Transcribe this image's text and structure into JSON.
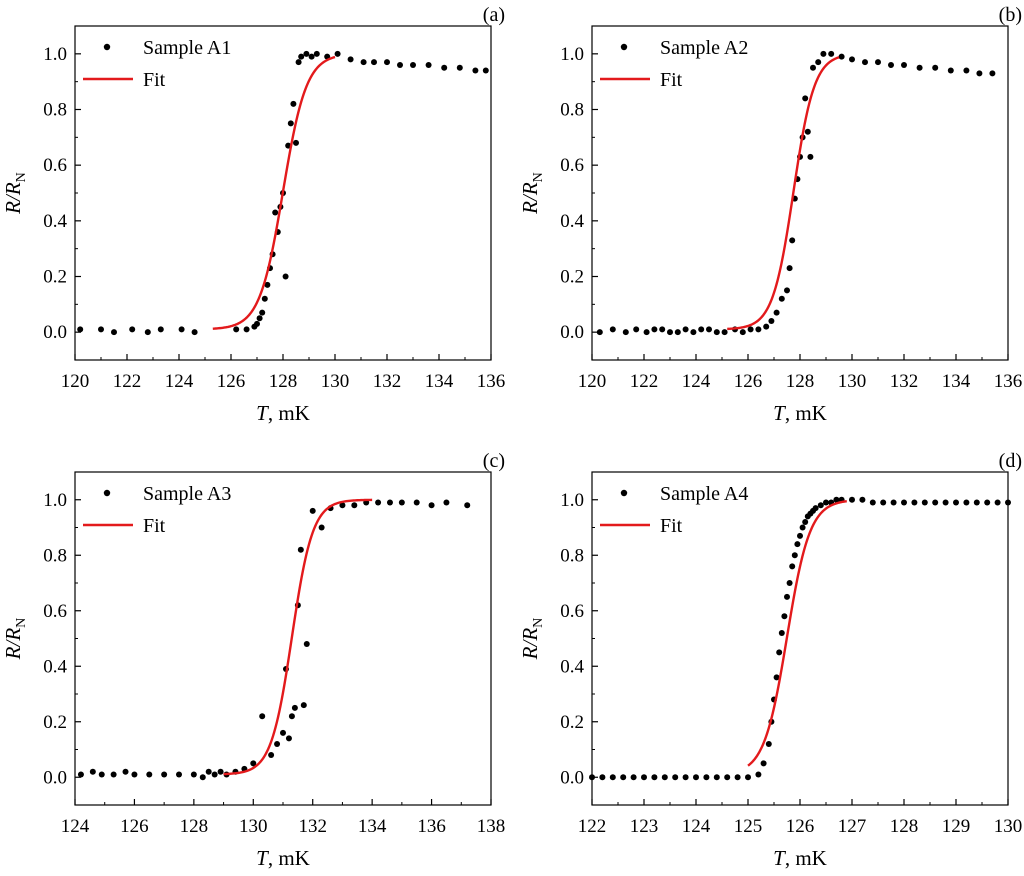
{
  "figure": {
    "style": {
      "fit_color": "#e31a1c",
      "point_color": "#000000"
    }
  },
  "chart_data": [
    {
      "type": "scatter",
      "panel_label": "(a)",
      "xlabel_italic": "T",
      "xlabel_rest": ", mK",
      "ylabel_main": "R/R",
      "ylabel_sub": "N",
      "xlim": [
        120,
        136
      ],
      "ylim": [
        -0.1,
        1.1
      ],
      "xticks": [
        120,
        122,
        124,
        126,
        128,
        130,
        132,
        134,
        136
      ],
      "yticks": [
        "0.0",
        "0.2",
        "0.4",
        "0.6",
        "0.8",
        "1.0"
      ],
      "legend": {
        "position": "top-left",
        "points_label": "Sample A1",
        "fit_label": "Fit"
      },
      "points": {
        "x": [
          120.2,
          121.0,
          121.5,
          122.2,
          122.8,
          123.3,
          124.1,
          124.6,
          126.2,
          126.6,
          126.9,
          127.0,
          127.1,
          127.2,
          127.3,
          127.4,
          127.5,
          127.6,
          127.7,
          127.8,
          127.9,
          128.0,
          128.1,
          128.2,
          128.3,
          128.4,
          128.5,
          128.6,
          128.7,
          128.9,
          129.1,
          129.3,
          129.7,
          130.1,
          130.6,
          131.1,
          131.5,
          132.0,
          132.5,
          133.0,
          133.6,
          134.2,
          134.8,
          135.4,
          135.8
        ],
        "y": [
          0.01,
          0.01,
          0.0,
          0.01,
          0.0,
          0.01,
          0.01,
          0.0,
          0.01,
          0.01,
          0.02,
          0.03,
          0.05,
          0.07,
          0.12,
          0.17,
          0.23,
          0.28,
          0.43,
          0.36,
          0.45,
          0.5,
          0.2,
          0.67,
          0.75,
          0.82,
          0.68,
          0.97,
          0.99,
          1.0,
          0.99,
          1.0,
          0.99,
          1.0,
          0.98,
          0.97,
          0.97,
          0.97,
          0.96,
          0.96,
          0.96,
          0.95,
          0.95,
          0.94,
          0.94
        ]
      },
      "fit": {
        "tc": 128.0,
        "width": 0.45,
        "x_start": 125.3,
        "x_end": 130.0
      }
    },
    {
      "type": "scatter",
      "panel_label": "(b)",
      "xlabel_italic": "T",
      "xlabel_rest": ", mK",
      "ylabel_main": "R/R",
      "ylabel_sub": "N",
      "xlim": [
        120,
        136
      ],
      "ylim": [
        -0.1,
        1.1
      ],
      "xticks": [
        120,
        122,
        124,
        126,
        128,
        130,
        132,
        134,
        136
      ],
      "yticks": [
        "0.0",
        "0.2",
        "0.4",
        "0.6",
        "0.8",
        "1.0"
      ],
      "legend": {
        "position": "top-left",
        "points_label": "Sample A2",
        "fit_label": "Fit"
      },
      "points": {
        "x": [
          120.3,
          120.8,
          121.3,
          121.7,
          122.1,
          122.4,
          122.7,
          123.0,
          123.3,
          123.6,
          123.9,
          124.2,
          124.5,
          124.8,
          125.1,
          125.5,
          125.8,
          126.1,
          126.4,
          126.7,
          126.9,
          127.1,
          127.3,
          127.5,
          127.6,
          127.7,
          127.8,
          127.9,
          128.0,
          128.1,
          128.2,
          128.3,
          128.4,
          128.5,
          128.7,
          128.9,
          129.2,
          129.6,
          130.0,
          130.5,
          131.0,
          131.5,
          132.0,
          132.6,
          133.2,
          133.8,
          134.4,
          134.9,
          135.4
        ],
        "y": [
          0.0,
          0.01,
          0.0,
          0.01,
          0.0,
          0.01,
          0.01,
          0.0,
          0.0,
          0.01,
          0.0,
          0.01,
          0.01,
          0.0,
          0.0,
          0.01,
          0.0,
          0.01,
          0.01,
          0.02,
          0.04,
          0.07,
          0.12,
          0.15,
          0.23,
          0.33,
          0.48,
          0.55,
          0.63,
          0.7,
          0.84,
          0.72,
          0.63,
          0.95,
          0.97,
          1.0,
          1.0,
          0.99,
          0.98,
          0.97,
          0.97,
          0.96,
          0.96,
          0.95,
          0.95,
          0.94,
          0.94,
          0.93,
          0.93
        ]
      },
      "fit": {
        "tc": 127.75,
        "width": 0.4,
        "x_start": 125.2,
        "x_end": 129.5
      }
    },
    {
      "type": "scatter",
      "panel_label": "(c)",
      "xlabel_italic": "T",
      "xlabel_rest": ", mK",
      "ylabel_main": "R/R",
      "ylabel_sub": "N",
      "xlim": [
        124,
        138
      ],
      "ylim": [
        -0.1,
        1.1
      ],
      "xticks": [
        124,
        126,
        128,
        130,
        132,
        134,
        136,
        138
      ],
      "yticks": [
        "0.0",
        "0.2",
        "0.4",
        "0.6",
        "0.8",
        "1.0"
      ],
      "legend": {
        "position": "top-left",
        "points_label": "Sample A3",
        "fit_label": "Fit"
      },
      "points": {
        "x": [
          124.2,
          124.6,
          124.9,
          125.3,
          125.7,
          126.0,
          126.5,
          127.0,
          127.5,
          128.0,
          128.3,
          128.5,
          128.7,
          128.9,
          129.1,
          129.4,
          129.7,
          130.0,
          130.3,
          130.6,
          130.8,
          131.0,
          131.1,
          131.2,
          131.3,
          131.4,
          131.5,
          131.6,
          131.7,
          131.8,
          132.0,
          132.3,
          132.6,
          133.0,
          133.4,
          133.8,
          134.2,
          134.6,
          135.0,
          135.5,
          136.0,
          136.5,
          137.2
        ],
        "y": [
          0.01,
          0.02,
          0.01,
          0.01,
          0.02,
          0.01,
          0.01,
          0.01,
          0.01,
          0.01,
          0.0,
          0.02,
          0.01,
          0.02,
          0.01,
          0.02,
          0.03,
          0.05,
          0.22,
          0.08,
          0.12,
          0.16,
          0.39,
          0.14,
          0.22,
          0.25,
          0.62,
          0.82,
          0.26,
          0.48,
          0.96,
          0.9,
          0.97,
          0.98,
          0.98,
          0.99,
          0.99,
          0.99,
          0.99,
          0.99,
          0.98,
          0.99,
          0.98
        ]
      },
      "fit": {
        "tc": 131.3,
        "width": 0.35,
        "x_start": 129.0,
        "x_end": 134.0
      }
    },
    {
      "type": "scatter",
      "panel_label": "(d)",
      "xlabel_italic": "T",
      "xlabel_rest": ", mK",
      "ylabel_main": "R/R",
      "ylabel_sub": "N",
      "xlim": [
        122,
        130
      ],
      "ylim": [
        -0.1,
        1.1
      ],
      "xticks": [
        122,
        123,
        124,
        125,
        126,
        127,
        128,
        129,
        130
      ],
      "yticks": [
        "0.0",
        "0.2",
        "0.4",
        "0.6",
        "0.8",
        "1.0"
      ],
      "legend": {
        "position": "top-left",
        "points_label": "Sample A4",
        "fit_label": "Fit"
      },
      "points": {
        "x": [
          122.0,
          122.2,
          122.4,
          122.6,
          122.8,
          123.0,
          123.2,
          123.4,
          123.6,
          123.8,
          124.0,
          124.2,
          124.4,
          124.6,
          124.8,
          125.0,
          125.2,
          125.3,
          125.4,
          125.45,
          125.5,
          125.55,
          125.6,
          125.65,
          125.7,
          125.75,
          125.8,
          125.85,
          125.9,
          125.95,
          126.0,
          126.05,
          126.1,
          126.15,
          126.2,
          126.25,
          126.3,
          126.4,
          126.5,
          126.6,
          126.7,
          126.8,
          127.0,
          127.2,
          127.4,
          127.6,
          127.8,
          128.0,
          128.2,
          128.4,
          128.6,
          128.8,
          129.0,
          129.2,
          129.4,
          129.6,
          129.8,
          130.0
        ],
        "y": [
          0.0,
          0.0,
          0.0,
          0.0,
          0.0,
          0.0,
          0.0,
          0.0,
          0.0,
          0.0,
          0.0,
          0.0,
          0.0,
          0.0,
          0.0,
          0.0,
          0.01,
          0.05,
          0.12,
          0.2,
          0.28,
          0.36,
          0.45,
          0.52,
          0.58,
          0.65,
          0.7,
          0.76,
          0.8,
          0.84,
          0.87,
          0.9,
          0.92,
          0.94,
          0.95,
          0.96,
          0.97,
          0.98,
          0.99,
          0.99,
          1.0,
          1.0,
          1.0,
          1.0,
          0.99,
          0.99,
          0.99,
          0.99,
          0.99,
          0.99,
          0.99,
          0.99,
          0.99,
          0.99,
          0.99,
          0.99,
          0.99,
          0.99
        ]
      },
      "fit": {
        "tc": 125.75,
        "width": 0.22,
        "x_start": 125.0,
        "x_end": 126.9
      }
    }
  ]
}
